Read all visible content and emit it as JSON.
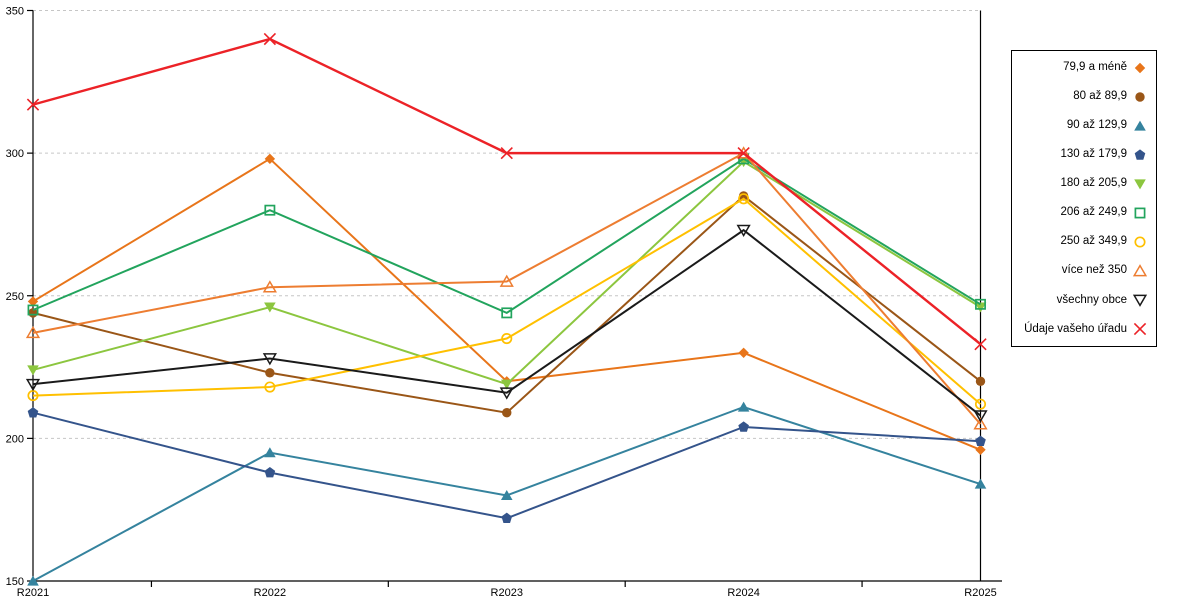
{
  "layout": {
    "background": "#FFFFFF",
    "axis_color": "#000000",
    "grid_color": "#C6C6C6"
  },
  "chart_data": {
    "type": "line",
    "title": "",
    "xlabel": "",
    "ylabel": "",
    "x_categories": [
      "R2021",
      "R2022",
      "R2023",
      "R2024",
      "R2025"
    ],
    "ylim": [
      150,
      350
    ],
    "yticks": [
      150,
      200,
      250,
      300,
      350
    ],
    "grid": "horizontal-dashed",
    "legend_position": "right",
    "series": [
      {
        "name": "79,9 a méně",
        "color": "#E8751A",
        "marker": "diamond",
        "marker_style": "filled",
        "values": [
          248,
          298,
          220,
          230,
          196
        ]
      },
      {
        "name": "80 až 89,9",
        "color": "#9A5617",
        "marker": "circle",
        "marker_style": "filled",
        "values": [
          244,
          223,
          209,
          285,
          220
        ]
      },
      {
        "name": "90 až 129,9",
        "color": "#35839E",
        "marker": "triangle-up",
        "marker_style": "filled",
        "values": [
          150,
          195,
          180,
          211,
          184
        ]
      },
      {
        "name": "130 až 179,9",
        "color": "#34548B",
        "marker": "pentagon",
        "marker_style": "filled",
        "values": [
          209,
          188,
          172,
          204,
          199
        ]
      },
      {
        "name": "180 až 205,9",
        "color": "#8CC63F",
        "marker": "triangle-down",
        "marker_style": "filled",
        "values": [
          224,
          246,
          219,
          297,
          246
        ]
      },
      {
        "name": "206 až 249,9",
        "color": "#22A45D",
        "marker": "square",
        "marker_style": "open",
        "values": [
          245,
          280,
          244,
          298,
          247
        ]
      },
      {
        "name": "250 až 349,9",
        "color": "#FFC000",
        "marker": "circle",
        "marker_style": "open",
        "values": [
          215,
          218,
          235,
          284,
          212
        ]
      },
      {
        "name": "více než 350",
        "color": "#ED7D31",
        "marker": "triangle-up",
        "marker_style": "open",
        "values": [
          237,
          253,
          255,
          300,
          205
        ]
      },
      {
        "name": "všechny obce",
        "color": "#1A1A1A",
        "marker": "triangle-down",
        "marker_style": "open",
        "values": [
          219,
          228,
          216,
          273,
          208
        ]
      },
      {
        "name": "Údaje vašeho úřadu",
        "color": "#EC2227",
        "marker": "x",
        "marker_style": "open",
        "values": [
          317,
          340,
          300,
          300,
          233
        ]
      }
    ]
  }
}
